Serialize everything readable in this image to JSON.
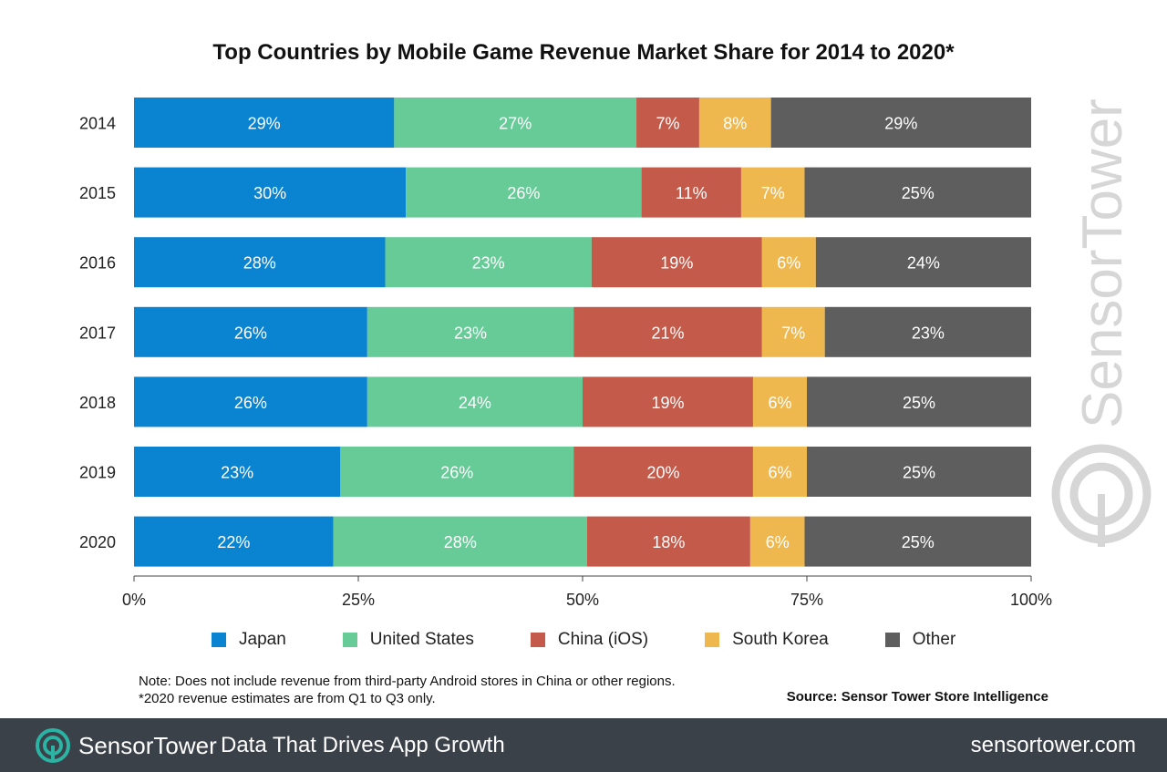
{
  "chart_data": {
    "type": "bar",
    "orientation": "horizontal",
    "stacked": true,
    "title": "Top Countries by Mobile Game Revenue Market Share for 2014 to 2020*",
    "categories": [
      "2014",
      "2015",
      "2016",
      "2017",
      "2018",
      "2019",
      "2020"
    ],
    "series": [
      {
        "name": "Japan",
        "color": "#0a84d0",
        "values": [
          29,
          30,
          28,
          26,
          26,
          23,
          22
        ],
        "labels": [
          "29%",
          "30%",
          "28%",
          "26%",
          "26%",
          "23%",
          "22%"
        ]
      },
      {
        "name": "United States",
        "color": "#67cb98",
        "values": [
          27,
          26,
          23,
          23,
          24,
          26,
          28
        ],
        "labels": [
          "27%",
          "26%",
          "23%",
          "23%",
          "24%",
          "26%",
          "28%"
        ]
      },
      {
        "name": "China (iOS)",
        "color": "#c45a4a",
        "values": [
          7,
          11,
          19,
          21,
          19,
          20,
          18
        ],
        "labels": [
          "7%",
          "11%",
          "19%",
          "21%",
          "19%",
          "20%",
          "18%"
        ]
      },
      {
        "name": "South Korea",
        "color": "#efb84f",
        "values": [
          8,
          7,
          6,
          7,
          6,
          6,
          6
        ],
        "labels": [
          "8%",
          "7%",
          "6%",
          "7%",
          "6%",
          "6%",
          "6%"
        ]
      },
      {
        "name": "Other",
        "color": "#5e5e5e",
        "values": [
          29,
          25,
          24,
          23,
          25,
          25,
          25
        ],
        "labels": [
          "29%",
          "25%",
          "24%",
          "23%",
          "25%",
          "25%",
          "25%"
        ]
      }
    ],
    "xlim": [
      0,
      100
    ],
    "xticks": [
      0,
      25,
      50,
      75,
      100
    ],
    "xtick_labels": [
      "0%",
      "25%",
      "50%",
      "75%",
      "100%"
    ],
    "legend_position": "bottom",
    "grid": false
  },
  "notes": {
    "line1": "Note: Does not include revenue from third-party Android stores in China or other regions.",
    "line2": "*2020 revenue estimates are from Q1 to Q3 only."
  },
  "source": "Source: Sensor Tower Store Intelligence",
  "watermark": {
    "brand": "SensorTower"
  },
  "footer": {
    "brand_part1": "Sensor",
    "brand_part2": "Tower",
    "tagline": "Data That Drives App Growth",
    "url": "sensortower.com",
    "colors": {
      "background": "#3b4149",
      "accent": "#2bb3a4"
    }
  }
}
